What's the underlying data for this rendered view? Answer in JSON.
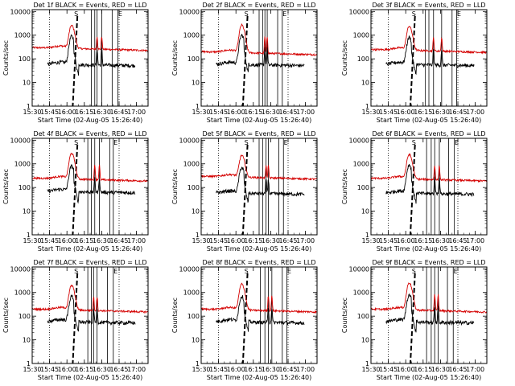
{
  "chart_data": {
    "type": "line",
    "layout": "3x3 grid",
    "y_scale": "log",
    "ylim": [
      1,
      12000
    ],
    "xlim": [
      "15:30",
      "17:10"
    ],
    "ylabel": "Counts/sec",
    "xlabel": "Start Time (02-Aug-05 15:26:40)",
    "x_ticks": [
      "15:30",
      "15:45",
      "16:00",
      "16:15",
      "16:30",
      "16:45",
      "17:00"
    ],
    "y_ticks": [
      "1",
      "10",
      "100",
      "1000",
      "10000"
    ],
    "colors": {
      "events": "#000000",
      "lld": "#d40000",
      "frame": "#000000"
    },
    "series_legend": "BLACK = Events, RED = LLD",
    "marker_letters": [
      "S",
      "E"
    ],
    "dotted_lines": [
      "15:45",
      "16:45"
    ],
    "panels": [
      {
        "title": "Det 1f BLACK = Events, RED = LLD",
        "red_base": 300,
        "black_base": 60,
        "peak_red": 2600,
        "peak_black": 900,
        "dashed": "16:06",
        "solid": [
          "16:21",
          "16:24",
          "16:26",
          "16:30",
          "16:39",
          "16:44"
        ]
      },
      {
        "title": "Det 2f BLACK = Events, RED = LLD",
        "red_base": 200,
        "black_base": 60,
        "peak_red": 2700,
        "peak_black": 1000,
        "dashed": "16:07",
        "solid": [
          "16:20",
          "16:23",
          "16:25",
          "16:27",
          "16:36",
          "16:40"
        ]
      },
      {
        "title": "Det 3f BLACK = Events, RED = LLD",
        "red_base": 250,
        "black_base": 60,
        "peak_red": 2400,
        "peak_black": 800,
        "dashed": "16:05",
        "solid": [
          "16:17",
          "16:20",
          "16:24",
          "16:31",
          "16:40",
          "16:44"
        ]
      },
      {
        "title": "Det 4f BLACK = Events, RED = LLD",
        "red_base": 250,
        "black_base": 70,
        "peak_red": 2800,
        "peak_black": 800,
        "dashed": "16:06",
        "solid": [
          "16:18",
          "16:21",
          "16:24",
          "16:28",
          "16:37",
          "16:40"
        ]
      },
      {
        "title": "Det 5f BLACK = Events, RED = LLD",
        "red_base": 300,
        "black_base": 60,
        "peak_red": 2300,
        "peak_black": 700,
        "dashed": "16:07",
        "solid": [
          "16:20",
          "16:23",
          "16:26",
          "16:28",
          "16:37",
          "16:41"
        ]
      },
      {
        "title": "Det 6f BLACK = Events, RED = LLD",
        "red_base": 250,
        "black_base": 60,
        "peak_red": 2500,
        "peak_black": 900,
        "dashed": "16:05",
        "solid": [
          "16:18",
          "16:22",
          "16:25",
          "16:29",
          "16:37",
          "16:42"
        ]
      },
      {
        "title": "Det 7f BLACK = Events, RED = LLD",
        "red_base": 200,
        "black_base": 60,
        "peak_red": 2000,
        "peak_black": 700,
        "dashed": "16:06",
        "solid": [
          "16:18",
          "16:21",
          "16:23",
          "16:26",
          "16:35",
          "16:40"
        ]
      },
      {
        "title": "Det 8f BLACK = Events, RED = LLD",
        "red_base": 200,
        "black_base": 60,
        "peak_red": 2300,
        "peak_black": 700,
        "dashed": "16:07",
        "solid": [
          "16:21",
          "16:25",
          "16:28",
          "16:31",
          "16:40",
          "16:44"
        ]
      },
      {
        "title": "Det 9f BLACK = Events, RED = LLD",
        "red_base": 200,
        "black_base": 60,
        "peak_red": 2600,
        "peak_black": 800,
        "dashed": "16:05",
        "solid": [
          "16:18",
          "16:22",
          "16:25",
          "16:28",
          "16:36",
          "16:41"
        ]
      }
    ]
  }
}
